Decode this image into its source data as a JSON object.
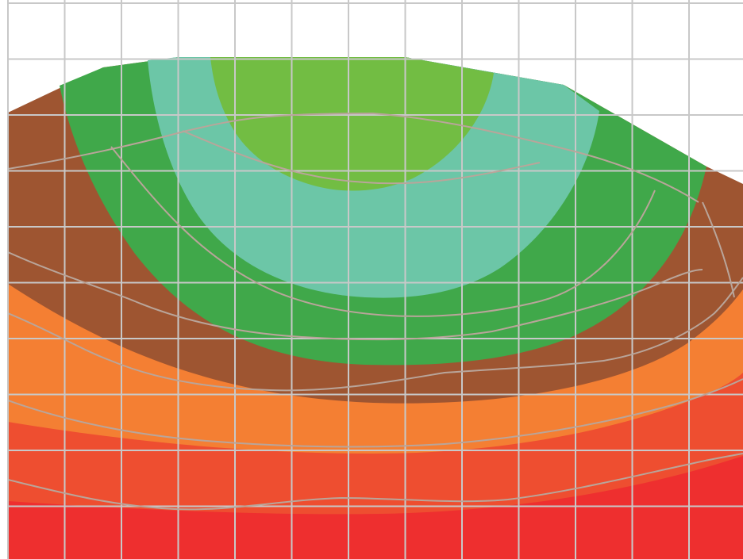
{
  "map": {
    "type": "contour-heatmap",
    "grid": "on",
    "legend": "none",
    "bands": [
      {
        "name": "band-red",
        "color": "#ee2f2f"
      },
      {
        "name": "band-red-orange",
        "color": "#ee4e30"
      },
      {
        "name": "band-orange",
        "color": "#f47f33"
      },
      {
        "name": "band-brown",
        "color": "#9e5531"
      },
      {
        "name": "band-green",
        "color": "#40a84a"
      },
      {
        "name": "band-teal",
        "color": "#6cc6a7"
      },
      {
        "name": "band-lime",
        "color": "#72bd43"
      }
    ],
    "grid_color": "#c8c8c8",
    "contour_color": "#b9a59a",
    "background": "#ffffff"
  }
}
